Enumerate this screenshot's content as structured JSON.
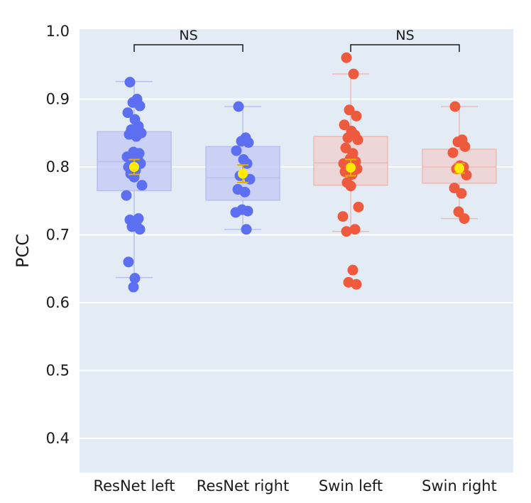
{
  "chart_data": {
    "type": "box",
    "ylabel": "PCC",
    "ylim": [
      0.35,
      1.0
    ],
    "yticks": [
      "1.0",
      "0.9",
      "0.8",
      "0.7",
      "0.6",
      "0.5",
      "0.4"
    ],
    "grid": true,
    "categories": [
      "ResNet left",
      "ResNet right",
      "Swin left",
      "Swin right"
    ],
    "colors": {
      "background": "#e3ecf5",
      "grid": "#ffffff",
      "resnet_point": "#5b6ff0",
      "resnet_box": "#c5cdf3",
      "swin_point": "#ee5a3e",
      "swin_box": "#efd2d2",
      "mean_marker": "#ffeb00",
      "mean_errorbar": "#e0b000"
    },
    "series": [
      {
        "category": "ResNet left",
        "q1": 0.765,
        "median": 0.808,
        "q3": 0.852,
        "whisker_low": 0.637,
        "whisker_high": 0.926,
        "mean": 0.8,
        "mean_err": 0.011,
        "points": [
          0.925,
          0.9,
          0.895,
          0.89,
          0.88,
          0.87,
          0.86,
          0.855,
          0.85,
          0.848,
          0.845,
          0.822,
          0.82,
          0.815,
          0.812,
          0.808,
          0.805,
          0.8,
          0.795,
          0.79,
          0.785,
          0.773,
          0.758,
          0.724,
          0.722,
          0.718,
          0.712,
          0.708,
          0.66,
          0.636,
          0.623
        ]
      },
      {
        "category": "ResNet right",
        "q1": 0.751,
        "median": 0.784,
        "q3": 0.83,
        "whisker_low": 0.708,
        "whisker_high": 0.889,
        "mean": 0.79,
        "mean_err": 0.013,
        "points": [
          0.889,
          0.843,
          0.838,
          0.836,
          0.824,
          0.811,
          0.805,
          0.787,
          0.782,
          0.767,
          0.763,
          0.737,
          0.735,
          0.733,
          0.708
        ]
      },
      {
        "category": "Swin left",
        "q1": 0.773,
        "median": 0.806,
        "q3": 0.845,
        "whisker_low": 0.705,
        "whisker_high": 0.937,
        "mean": 0.799,
        "mean_err": 0.012,
        "points": [
          0.961,
          0.937,
          0.884,
          0.875,
          0.862,
          0.853,
          0.847,
          0.843,
          0.84,
          0.828,
          0.82,
          0.812,
          0.808,
          0.805,
          0.802,
          0.8,
          0.797,
          0.793,
          0.789,
          0.777,
          0.772,
          0.741,
          0.727,
          0.708,
          0.705,
          0.648,
          0.63,
          0.627
        ]
      },
      {
        "category": "Swin right",
        "q1": 0.776,
        "median": 0.8,
        "q3": 0.826,
        "whisker_low": 0.724,
        "whisker_high": 0.889,
        "mean": 0.798,
        "mean_err": 0.007,
        "points": [
          0.889,
          0.84,
          0.837,
          0.83,
          0.821,
          0.802,
          0.8,
          0.797,
          0.788,
          0.769,
          0.761,
          0.734,
          0.724
        ]
      }
    ],
    "annotations": [
      {
        "text": "NS",
        "from": "ResNet left",
        "to": "ResNet right"
      },
      {
        "text": "NS",
        "from": "Swin left",
        "to": "Swin right"
      }
    ]
  }
}
